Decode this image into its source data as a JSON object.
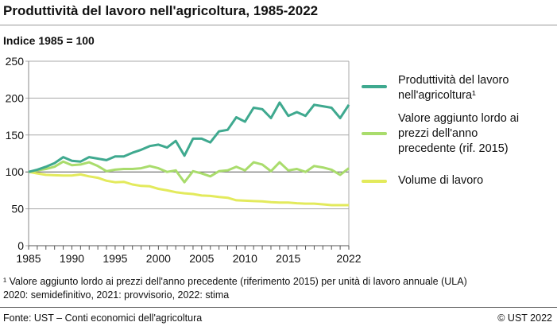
{
  "title": "Produttività del lavoro nell'agricoltura, 1985-2022",
  "subtitle": "Indice 1985 = 100",
  "footnote1": "¹  Valore aggiunto lordo ai prezzi dell'anno precedente (riferimento 2015) per unità di lavoro annuale (ULA)",
  "footnote2": "2020: semidefinitivo, 2021: provvisorio, 2022: stima",
  "source": "Fonte: UST – Conti economici dell'agricoltura",
  "copyright": "© UST 2022",
  "chart_data": {
    "type": "line",
    "title": "Produttività del lavoro nell'agricoltura, 1985-2022",
    "ylabel": "Indice 1985 = 100",
    "xlim": [
      1985,
      2022
    ],
    "ylim": [
      0,
      250
    ],
    "yticks": [
      "0",
      "50",
      "100",
      "150",
      "200",
      "250"
    ],
    "xticks": [
      "1985",
      "1990",
      "1995",
      "2000",
      "2005",
      "2010",
      "2015",
      "2022"
    ],
    "xtick_values": [
      1985,
      1990,
      1995,
      2000,
      2005,
      2010,
      2015,
      2022
    ],
    "grid": true,
    "legend_position": "right",
    "x": [
      1985,
      1986,
      1987,
      1988,
      1989,
      1990,
      1991,
      1992,
      1993,
      1994,
      1995,
      1996,
      1997,
      1998,
      1999,
      2000,
      2001,
      2002,
      2003,
      2004,
      2005,
      2006,
      2007,
      2008,
      2009,
      2010,
      2011,
      2012,
      2013,
      2014,
      2015,
      2016,
      2017,
      2018,
      2019,
      2020,
      2021,
      2022
    ],
    "series": [
      {
        "name": "Produttività del lavoro nell'agricoltura¹",
        "legend_lines": [
          "Produttività del lavoro",
          "nell'agricoltura¹"
        ],
        "color": "#3fa98f",
        "values": [
          100,
          103,
          107,
          112,
          120,
          115,
          114,
          120,
          118,
          116,
          121,
          121,
          126,
          130,
          135,
          137,
          133,
          142,
          122,
          145,
          145,
          140,
          155,
          157,
          174,
          168,
          187,
          185,
          173,
          194,
          176,
          181,
          176,
          191,
          189,
          187,
          173,
          191
        ]
      },
      {
        "name": "Valore aggiunto lordo ai prezzi dell'anno precedente (rif. 2015)",
        "legend_lines": [
          "Valore aggiunto lordo ai",
          "prezzi dell'anno",
          "precedente (rif. 2015)"
        ],
        "color": "#a9dc6c",
        "values": [
          100,
          102,
          104,
          107,
          114,
          109,
          110,
          113,
          108,
          101,
          103,
          104,
          104,
          105,
          108,
          105,
          100,
          102,
          86,
          101,
          98,
          94,
          101,
          102,
          107,
          102,
          113,
          110,
          101,
          113,
          102,
          104,
          100,
          108,
          106,
          103,
          96,
          105
        ]
      },
      {
        "name": "Volume di lavoro",
        "legend_lines": [
          "Volume di lavoro"
        ],
        "color": "#e3ea5c",
        "values": [
          100,
          98,
          96,
          95.5,
          95,
          95,
          96.5,
          94,
          92,
          88,
          86,
          86.5,
          83,
          81,
          80.5,
          77,
          75,
          72.5,
          71,
          70,
          68,
          67.5,
          66,
          65,
          61.5,
          61,
          60.5,
          60,
          59,
          58.5,
          58.5,
          57.5,
          57,
          57,
          56,
          55,
          55,
          55
        ]
      }
    ]
  }
}
